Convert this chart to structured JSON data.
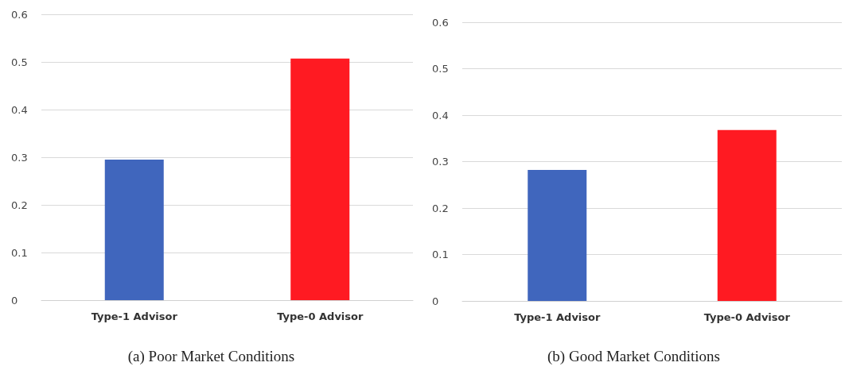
{
  "chart_data": [
    {
      "type": "bar",
      "title": "(a) Poor Market Conditions",
      "categories": [
        "Type-1 Advisor",
        "Type-0 Advisor"
      ],
      "values": [
        0.295,
        0.507
      ],
      "colors": [
        "#4066bd",
        "#ff1a22"
      ],
      "ylim": [
        0,
        0.6
      ],
      "yticks": [
        {
          "value": 0,
          "label": "0"
        },
        0.1,
        0.2,
        0.3,
        0.4,
        0.5,
        0.6
      ],
      "grid": "y"
    },
    {
      "type": "bar",
      "title": "(b) Good Market Conditions",
      "categories": [
        "Type-1 Advisor",
        "Type-0 Advisor"
      ],
      "values": [
        0.282,
        0.368
      ],
      "colors": [
        "#4066bd",
        "#ff1a22"
      ],
      "ylim": [
        0,
        0.6
      ],
      "yticks": [
        {
          "value": 0,
          "label": "0"
        },
        0.1,
        0.2,
        0.3,
        0.4,
        0.5,
        0.6
      ],
      "grid": "y"
    }
  ]
}
